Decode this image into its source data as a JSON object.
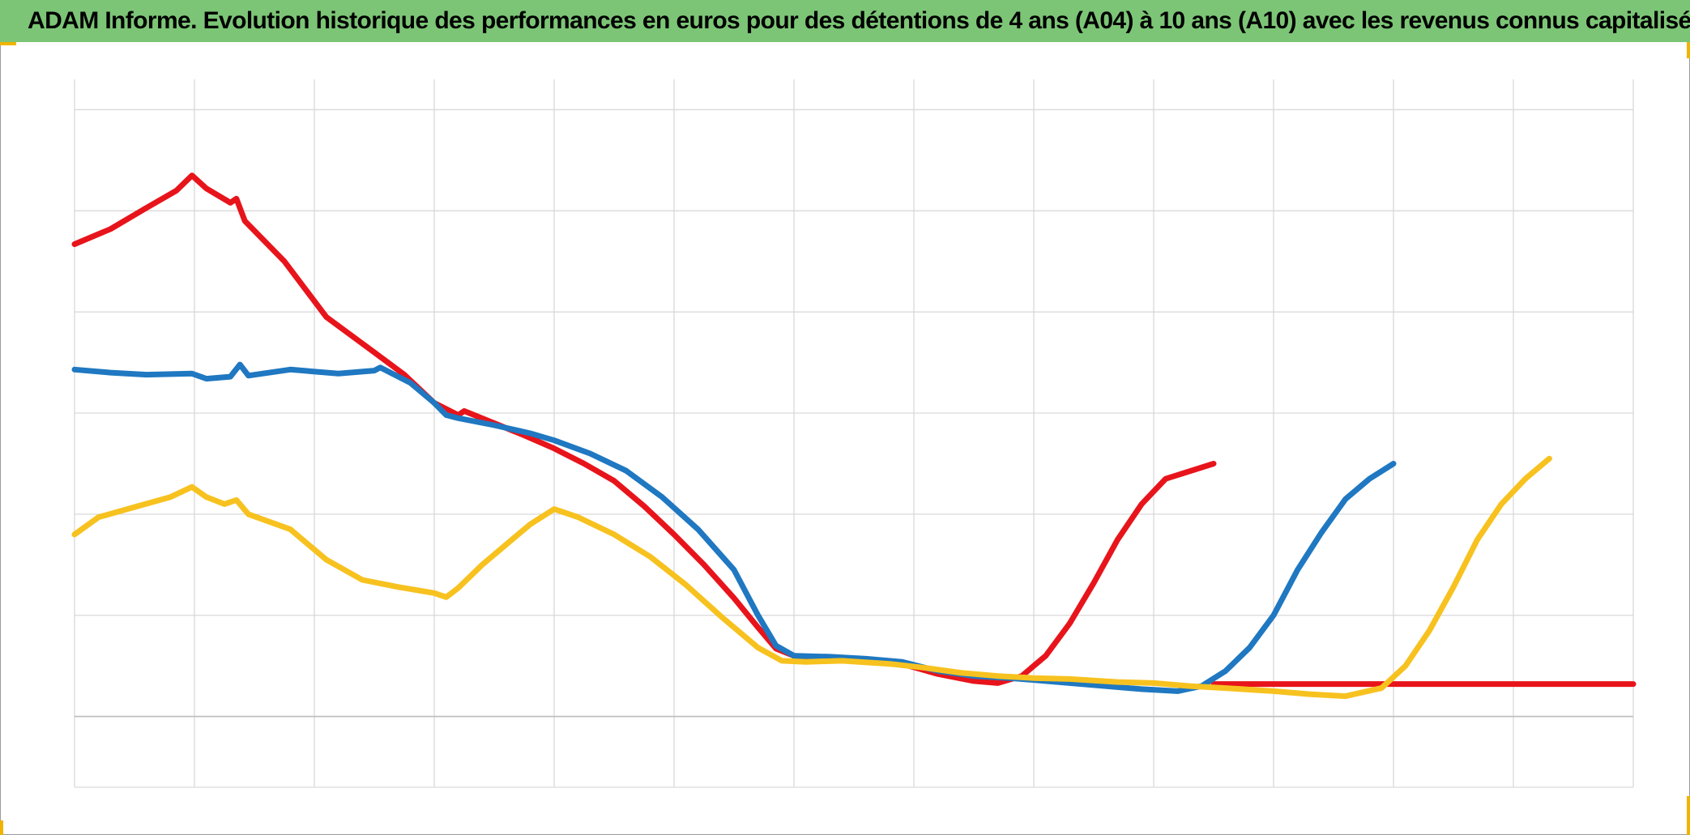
{
  "chart_data": {
    "type": "line",
    "title": "ADAM Informe. Evolution historique des performances en euros pour des détentions de 4 ans (A04) à 10 ans (A10) avec les revenus connus capitalisés",
    "xlabel": "",
    "ylabel": "",
    "grid": true,
    "legend": "none",
    "xlim": [
      0,
      13
    ],
    "ylim": [
      -0.7,
      6.3
    ],
    "x_gridlines": [
      0,
      1,
      2,
      3,
      4,
      5,
      6,
      7,
      8,
      9,
      10,
      11,
      12,
      13
    ],
    "y_gridlines": [
      -0.7,
      0,
      1,
      2,
      3,
      4,
      5,
      6
    ],
    "series": [
      {
        "color": "#e8141b",
        "points": [
          [
            0.0,
            4.67
          ],
          [
            0.3,
            4.82
          ],
          [
            0.6,
            5.03
          ],
          [
            0.85,
            5.2
          ],
          [
            0.98,
            5.35
          ],
          [
            1.1,
            5.22
          ],
          [
            1.3,
            5.08
          ],
          [
            1.35,
            5.12
          ],
          [
            1.42,
            4.9
          ],
          [
            1.75,
            4.5
          ],
          [
            2.1,
            3.95
          ],
          [
            2.5,
            3.6
          ],
          [
            2.75,
            3.38
          ],
          [
            3.0,
            3.1
          ],
          [
            3.2,
            2.98
          ],
          [
            3.25,
            3.02
          ],
          [
            3.5,
            2.9
          ],
          [
            3.75,
            2.78
          ],
          [
            4.0,
            2.65
          ],
          [
            4.25,
            2.5
          ],
          [
            4.5,
            2.33
          ],
          [
            4.75,
            2.08
          ],
          [
            5.0,
            1.8
          ],
          [
            5.25,
            1.5
          ],
          [
            5.5,
            1.17
          ],
          [
            5.7,
            0.88
          ],
          [
            5.85,
            0.67
          ],
          [
            6.0,
            0.6
          ],
          [
            6.3,
            0.58
          ],
          [
            6.6,
            0.56
          ],
          [
            6.9,
            0.52
          ],
          [
            7.2,
            0.42
          ],
          [
            7.5,
            0.35
          ],
          [
            7.7,
            0.33
          ],
          [
            7.9,
            0.4
          ],
          [
            8.1,
            0.6
          ],
          [
            8.3,
            0.92
          ],
          [
            8.5,
            1.32
          ],
          [
            8.7,
            1.75
          ],
          [
            8.9,
            2.1
          ],
          [
            9.1,
            2.35
          ],
          [
            9.5,
            2.5
          ],
          [
            9.5,
            0.32
          ],
          [
            10.0,
            0.32
          ],
          [
            10.5,
            0.32
          ],
          [
            11.0,
            0.32
          ],
          [
            11.5,
            0.32
          ],
          [
            12.0,
            0.32
          ],
          [
            12.5,
            0.32
          ],
          [
            13.0,
            0.32
          ]
        ]
      },
      {
        "color": "#1f78c1",
        "points": [
          [
            0.0,
            3.43
          ],
          [
            0.3,
            3.4
          ],
          [
            0.6,
            3.38
          ],
          [
            0.98,
            3.39
          ],
          [
            1.1,
            3.34
          ],
          [
            1.3,
            3.36
          ],
          [
            1.38,
            3.48
          ],
          [
            1.45,
            3.37
          ],
          [
            1.8,
            3.43
          ],
          [
            2.2,
            3.39
          ],
          [
            2.5,
            3.42
          ],
          [
            2.55,
            3.45
          ],
          [
            2.8,
            3.3
          ],
          [
            3.0,
            3.1
          ],
          [
            3.1,
            2.98
          ],
          [
            3.2,
            2.95
          ],
          [
            3.5,
            2.88
          ],
          [
            3.8,
            2.8
          ],
          [
            4.0,
            2.73
          ],
          [
            4.3,
            2.6
          ],
          [
            4.6,
            2.43
          ],
          [
            4.9,
            2.17
          ],
          [
            5.2,
            1.85
          ],
          [
            5.5,
            1.45
          ],
          [
            5.7,
            1.0
          ],
          [
            5.85,
            0.7
          ],
          [
            6.0,
            0.6
          ],
          [
            6.3,
            0.59
          ],
          [
            6.6,
            0.57
          ],
          [
            6.9,
            0.54
          ],
          [
            7.2,
            0.45
          ],
          [
            7.5,
            0.4
          ],
          [
            7.8,
            0.38
          ],
          [
            8.1,
            0.35
          ],
          [
            8.5,
            0.31
          ],
          [
            8.9,
            0.27
          ],
          [
            9.2,
            0.25
          ],
          [
            9.4,
            0.3
          ],
          [
            9.6,
            0.45
          ],
          [
            9.8,
            0.68
          ],
          [
            10.0,
            1.0
          ],
          [
            10.2,
            1.45
          ],
          [
            10.4,
            1.82
          ],
          [
            10.6,
            2.15
          ],
          [
            10.8,
            2.35
          ],
          [
            11.0,
            2.5
          ]
        ]
      },
      {
        "color": "#f7c21f",
        "points": [
          [
            0.0,
            1.8
          ],
          [
            0.2,
            1.97
          ],
          [
            0.5,
            2.07
          ],
          [
            0.8,
            2.17
          ],
          [
            0.98,
            2.27
          ],
          [
            1.1,
            2.17
          ],
          [
            1.25,
            2.1
          ],
          [
            1.35,
            2.14
          ],
          [
            1.45,
            2.0
          ],
          [
            1.8,
            1.85
          ],
          [
            2.1,
            1.55
          ],
          [
            2.4,
            1.35
          ],
          [
            2.7,
            1.28
          ],
          [
            3.0,
            1.22
          ],
          [
            3.1,
            1.18
          ],
          [
            3.2,
            1.27
          ],
          [
            3.4,
            1.5
          ],
          [
            3.6,
            1.7
          ],
          [
            3.8,
            1.9
          ],
          [
            4.0,
            2.05
          ],
          [
            4.2,
            1.97
          ],
          [
            4.5,
            1.8
          ],
          [
            4.8,
            1.58
          ],
          [
            5.1,
            1.3
          ],
          [
            5.4,
            0.98
          ],
          [
            5.7,
            0.68
          ],
          [
            5.9,
            0.55
          ],
          [
            6.1,
            0.54
          ],
          [
            6.4,
            0.55
          ],
          [
            6.8,
            0.52
          ],
          [
            7.1,
            0.48
          ],
          [
            7.4,
            0.43
          ],
          [
            7.7,
            0.4
          ],
          [
            8.0,
            0.38
          ],
          [
            8.3,
            0.37
          ],
          [
            8.7,
            0.34
          ],
          [
            9.0,
            0.33
          ],
          [
            9.3,
            0.3
          ],
          [
            9.6,
            0.28
          ],
          [
            10.0,
            0.25
          ],
          [
            10.3,
            0.22
          ],
          [
            10.6,
            0.2
          ],
          [
            10.9,
            0.28
          ],
          [
            11.1,
            0.5
          ],
          [
            11.3,
            0.85
          ],
          [
            11.5,
            1.28
          ],
          [
            11.7,
            1.75
          ],
          [
            11.9,
            2.1
          ],
          [
            12.1,
            2.35
          ],
          [
            12.3,
            2.55
          ]
        ]
      }
    ]
  }
}
